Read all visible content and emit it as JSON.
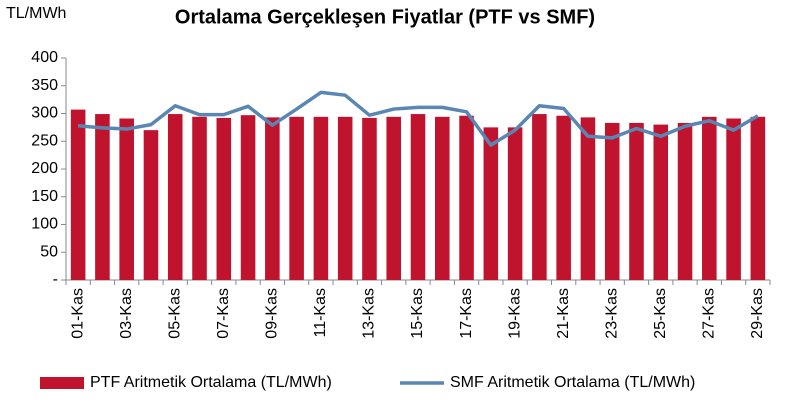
{
  "chart_data": {
    "type": "bar",
    "title": "Ortalama Gerçekleşen Fiyatlar (PTF vs SMF)",
    "y_label": "TL/MWh",
    "categories": [
      "01-Kas",
      null,
      "03-Kas",
      null,
      "05-Kas",
      null,
      "07-Kas",
      null,
      "09-Kas",
      null,
      "11-Kas",
      null,
      "13-Kas",
      null,
      "15-Kas",
      null,
      "17-Kas",
      null,
      "19-Kas",
      null,
      "21-Kas",
      null,
      "23-Kas",
      null,
      "25-Kas",
      null,
      "27-Kas",
      null,
      "29-Kas"
    ],
    "series": [
      {
        "name": "PTF Aritmetik Ortalama (TL/MWh)",
        "type": "bar",
        "color": "#c0142e",
        "values": [
          307,
          299,
          291,
          270,
          299,
          294,
          292,
          297,
          293,
          294,
          294,
          294,
          292,
          294,
          299,
          294,
          296,
          275,
          275,
          299,
          296,
          293,
          283,
          283,
          280,
          283,
          294,
          291,
          294
        ]
      },
      {
        "name": "SMF Aritmetik Ortalama (TL/MWh)",
        "type": "line",
        "color": "#5a86b4",
        "values": [
          278,
          274,
          272,
          280,
          314,
          298,
          298,
          313,
          279,
          308,
          338,
          333,
          297,
          308,
          311,
          311,
          303,
          243,
          270,
          314,
          309,
          259,
          256,
          273,
          259,
          277,
          287,
          270,
          296
        ]
      }
    ],
    "ylim": [
      0,
      400
    ],
    "yticks": [
      {
        "value": 0,
        "label": "-"
      },
      50,
      100,
      150,
      200,
      250,
      300,
      350,
      400
    ],
    "grid": false,
    "legend": "bottom"
  }
}
